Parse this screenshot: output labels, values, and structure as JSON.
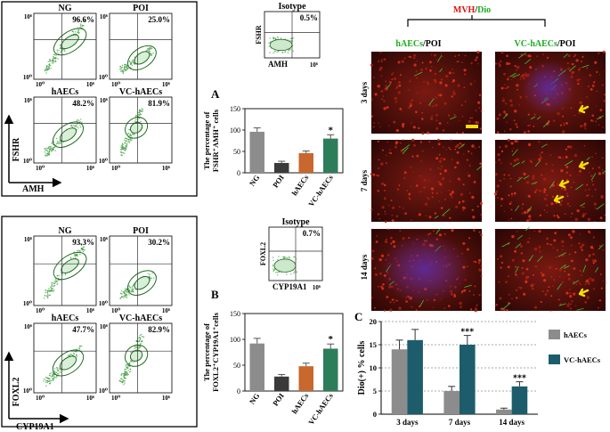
{
  "flow_top": {
    "axis_labels": {
      "y": "FSHR",
      "x": "AMH"
    },
    "tick_labels": {
      "y_top": "10⁶",
      "y_bottom": "10⁰",
      "x_left": "10⁰",
      "x_right": "10⁶"
    },
    "panels": [
      {
        "name": "NG",
        "percent": "96.6%"
      },
      {
        "name": "POI",
        "percent": "25.0%"
      },
      {
        "name": "hAECs",
        "percent": "48.2%"
      },
      {
        "name": "VC-hAECs",
        "percent": "81.9%"
      }
    ],
    "isotype": {
      "name": "Isotype",
      "percent": "0.5%",
      "ylabel": "FSHR",
      "xlabel": "AMH"
    }
  },
  "flow_bottom": {
    "axis_labels": {
      "y": "FOXL2",
      "x": "CYP19A1"
    },
    "tick_labels": {
      "y_top": "10⁶",
      "y_bottom": "10⁰",
      "x_left": "10⁰",
      "x_right": "10⁶"
    },
    "panels": [
      {
        "name": "NG",
        "percent": "93.3%"
      },
      {
        "name": "POI",
        "percent": "30.2%"
      },
      {
        "name": "hAECs",
        "percent": "47.7%"
      },
      {
        "name": "VC-hAECs",
        "percent": "82.9%"
      }
    ],
    "isotype": {
      "name": "Isotype",
      "percent": "0.7%",
      "ylabel": "FOXL2",
      "xlabel": "CYP19A1"
    }
  },
  "panel_letters": {
    "a": "A",
    "b": "B",
    "c": "C"
  },
  "micro": {
    "title_mvh": "MVH",
    "title_sep": "/",
    "title_dio": "Dio",
    "col_left": {
      "part1": "hAECs",
      "part2": "/POI"
    },
    "col_right": {
      "part1": "VC-hAECs",
      "part2": "/POI"
    },
    "rows": [
      "3 days",
      "7 days",
      "14 days"
    ]
  },
  "chart_data": [
    {
      "id": "A",
      "type": "bar",
      "categories": [
        "NG",
        "POI",
        "hAECs",
        "VC-hAECs"
      ],
      "values": [
        96,
        23,
        46,
        80
      ],
      "errors": [
        9,
        4,
        5,
        9
      ],
      "significance": [
        "",
        "",
        "",
        "*"
      ],
      "colors": [
        "#8c8c8c",
        "#3a3a3a",
        "#c8682e",
        "#2e7d5a"
      ],
      "ylabel_line1": "The percentage of",
      "ylabel_line2": "FSHR⁺AMH⁺ cells",
      "ylim": [
        0,
        150
      ],
      "yticks": [
        0,
        50,
        100,
        150
      ]
    },
    {
      "id": "B",
      "type": "bar",
      "categories": [
        "NG",
        "POI",
        "hAECs",
        "VC-hAECs"
      ],
      "values": [
        92,
        28,
        48,
        82
      ],
      "errors": [
        10,
        4,
        6,
        9
      ],
      "significance": [
        "",
        "",
        "",
        "*"
      ],
      "colors": [
        "#8c8c8c",
        "#3a3a3a",
        "#c8682e",
        "#2e7d5a"
      ],
      "ylabel_line1": "The percentage of",
      "ylabel_line2": "FOXL2⁺CYP19A1⁺cells",
      "ylim": [
        0,
        150
      ],
      "yticks": [
        0,
        50,
        100,
        150
      ]
    },
    {
      "id": "C",
      "type": "bar",
      "categories": [
        "3 days",
        "7 days",
        "14 days"
      ],
      "series": [
        {
          "name": "hAECs",
          "values": [
            14,
            5,
            1
          ],
          "errors": [
            2,
            1,
            0.3
          ],
          "color": "#8c8c8c"
        },
        {
          "name": "VC-hAECs",
          "values": [
            16,
            15,
            6
          ],
          "errors": [
            2.3,
            2,
            1
          ],
          "color": "#1d5d6b",
          "significance": [
            "",
            "***",
            "***"
          ]
        }
      ],
      "ylabel": "Dio(+) % cells",
      "ylim": [
        0,
        20
      ],
      "yticks": [
        0,
        5,
        10,
        15,
        20
      ]
    }
  ]
}
